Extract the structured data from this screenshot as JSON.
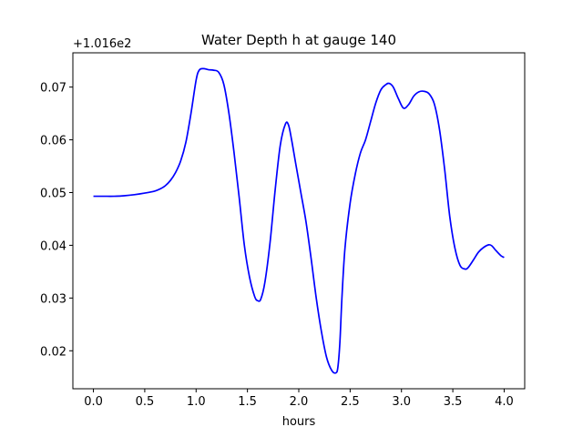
{
  "chart_data": {
    "type": "line",
    "title": "Water Depth h at gauge 140",
    "xlabel": "hours",
    "ylabel": "",
    "y_offset_label": "+1.016e2",
    "xlim": [
      -0.2,
      4.2
    ],
    "ylim": [
      0.0128,
      0.0765
    ],
    "x_ticks": [
      0.0,
      0.5,
      1.0,
      1.5,
      2.0,
      2.5,
      3.0,
      3.5,
      4.0
    ],
    "x_tick_labels": [
      "0.0",
      "0.5",
      "1.0",
      "1.5",
      "2.0",
      "2.5",
      "3.0",
      "3.5",
      "4.0"
    ],
    "y_ticks": [
      0.02,
      0.03,
      0.04,
      0.05,
      0.06,
      0.07
    ],
    "y_tick_labels": [
      "0.02",
      "0.03",
      "0.04",
      "0.05",
      "0.06",
      "0.07"
    ],
    "grid": false,
    "line_color": "#0000ff",
    "series": [
      {
        "x": [
          0.0,
          0.1,
          0.2,
          0.3,
          0.4,
          0.5,
          0.6,
          0.65,
          0.7,
          0.75,
          0.8,
          0.85,
          0.9,
          0.95,
          1.0,
          1.03,
          1.07,
          1.12,
          1.17,
          1.22,
          1.27,
          1.32,
          1.37,
          1.42,
          1.47,
          1.52,
          1.57,
          1.6,
          1.63,
          1.67,
          1.72,
          1.77,
          1.82,
          1.87,
          1.9,
          1.93,
          1.97,
          2.02,
          2.07,
          2.12,
          2.17,
          2.22,
          2.27,
          2.32,
          2.36,
          2.38,
          2.4,
          2.42,
          2.45,
          2.5,
          2.55,
          2.6,
          2.65,
          2.7,
          2.75,
          2.8,
          2.85,
          2.88,
          2.92,
          2.97,
          3.02,
          3.07,
          3.12,
          3.17,
          3.22,
          3.27,
          3.32,
          3.37,
          3.42,
          3.47,
          3.52,
          3.57,
          3.62,
          3.65,
          3.7,
          3.75,
          3.8,
          3.85,
          3.88,
          3.92,
          3.97,
          4.0
        ],
        "y": [
          0.0493,
          0.0493,
          0.0493,
          0.0494,
          0.0496,
          0.0499,
          0.0503,
          0.0507,
          0.0513,
          0.0523,
          0.0538,
          0.056,
          0.0595,
          0.065,
          0.0713,
          0.0732,
          0.0735,
          0.0733,
          0.0732,
          0.0728,
          0.0705,
          0.065,
          0.0575,
          0.049,
          0.04,
          0.034,
          0.0303,
          0.0295,
          0.0298,
          0.033,
          0.0405,
          0.0505,
          0.059,
          0.063,
          0.0628,
          0.06,
          0.0555,
          0.05,
          0.0445,
          0.0375,
          0.03,
          0.0237,
          0.0188,
          0.0163,
          0.0158,
          0.0168,
          0.0215,
          0.03,
          0.0395,
          0.048,
          0.0535,
          0.0575,
          0.06,
          0.0635,
          0.067,
          0.0695,
          0.0705,
          0.0707,
          0.07,
          0.0678,
          0.066,
          0.0667,
          0.0683,
          0.0691,
          0.0692,
          0.0687,
          0.0668,
          0.062,
          0.0545,
          0.0455,
          0.0395,
          0.0362,
          0.0355,
          0.0358,
          0.0372,
          0.0387,
          0.0396,
          0.0401,
          0.0399,
          0.039,
          0.038,
          0.0377
        ]
      }
    ]
  }
}
